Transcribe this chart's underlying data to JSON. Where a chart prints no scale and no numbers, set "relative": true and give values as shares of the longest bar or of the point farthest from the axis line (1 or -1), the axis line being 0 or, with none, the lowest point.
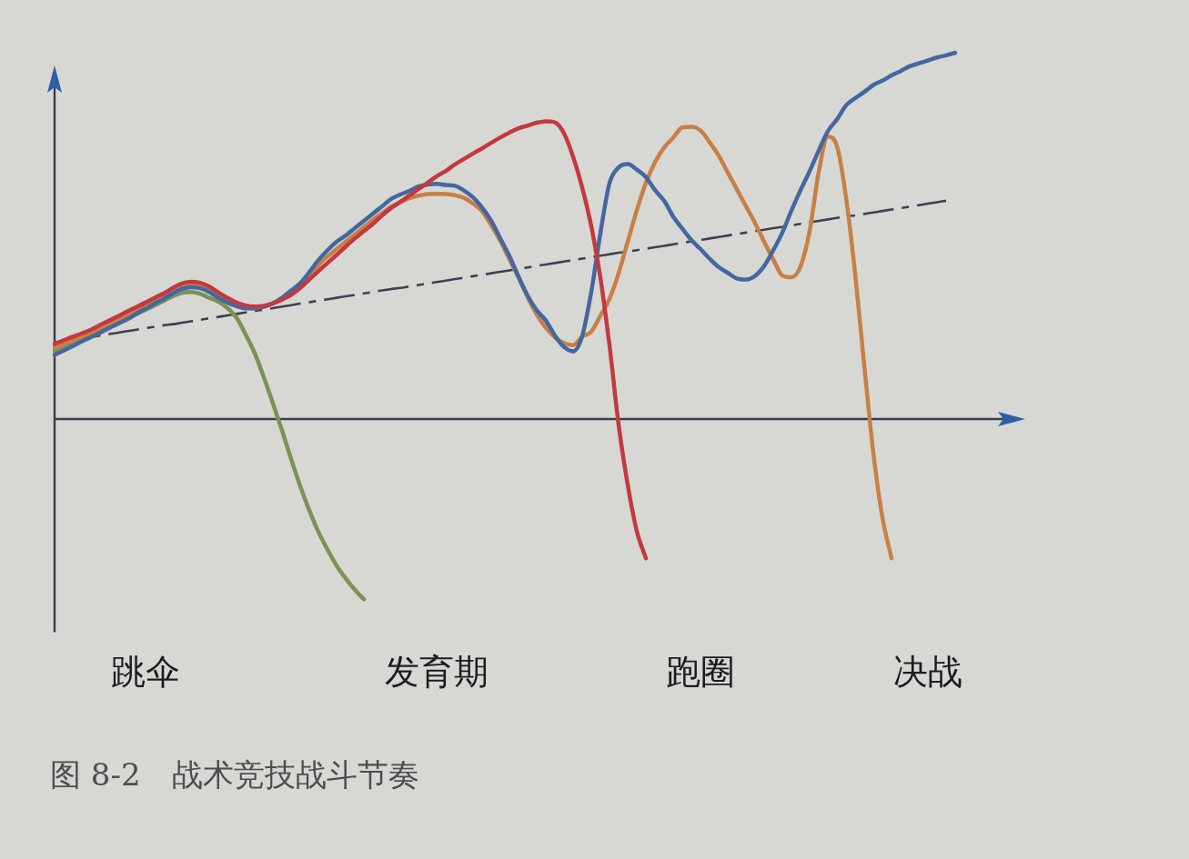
{
  "chart_data": {
    "type": "line",
    "relative": true,
    "marker": "none",
    "categories": [
      null,
      null,
      null,
      null,
      null,
      null,
      null,
      null,
      null,
      null,
      "跳伞",
      null,
      null,
      null,
      null,
      null,
      null,
      null,
      null,
      null,
      null,
      null,
      null,
      null,
      null,
      null,
      null,
      null,
      null,
      null,
      null,
      null,
      null,
      null,
      null,
      null,
      null,
      null,
      null,
      null,
      null,
      null,
      "发育期",
      null,
      null,
      null,
      null,
      null,
      null,
      null,
      null,
      null,
      null,
      null,
      null,
      null,
      null,
      null,
      null,
      null,
      null,
      null,
      null,
      null,
      null,
      null,
      null,
      null,
      null,
      null,
      null,
      "跑圈",
      null,
      null,
      null,
      null,
      null,
      null,
      null,
      null,
      null,
      null,
      null,
      null,
      null,
      null,
      null,
      null,
      null,
      null,
      null,
      null,
      null,
      null,
      null,
      null,
      "决战",
      null,
      null,
      null,
      null,
      null,
      null,
      null,
      null
    ],
    "series": [
      {
        "color": "#c3393f",
        "values": [
          0.205,
          0.215,
          0.225,
          0.234,
          0.244,
          0.257,
          0.269,
          0.281,
          0.294,
          0.306,
          0.318,
          0.331,
          0.343,
          0.358,
          0.37,
          0.375,
          0.372,
          0.362,
          0.346,
          0.331,
          0.318,
          0.31,
          0.307,
          0.309,
          0.316,
          0.326,
          0.339,
          0.358,
          0.381,
          0.404,
          0.426,
          0.448,
          0.471,
          0.493,
          0.513,
          0.533,
          0.556,
          0.576,
          0.593,
          0.61,
          0.628,
          0.645,
          0.663,
          0.677,
          0.695,
          0.71,
          0.725,
          0.739,
          0.754,
          0.769,
          0.782,
          0.794,
          0.801,
          0.809,
          0.813,
          0.81,
          0.78,
          0.716,
          0.632,
          0.526,
          0.386,
          0.201,
          -0.015,
          -0.179,
          -0.306,
          -0.38,
          null,
          null,
          null,
          null,
          null,
          null,
          null,
          null,
          null,
          null,
          null,
          null,
          null,
          null,
          null,
          null,
          null,
          null,
          null,
          null,
          null,
          null,
          null,
          null,
          null,
          null,
          null,
          null,
          null,
          null,
          null,
          null,
          null,
          null,
          null,
          null,
          null,
          null,
          null
        ]
      },
      {
        "color": "#44679f",
        "values": [
          0.175,
          0.187,
          0.199,
          0.212,
          0.224,
          0.236,
          0.249,
          0.261,
          0.273,
          0.288,
          0.301,
          0.315,
          0.328,
          0.343,
          0.355,
          0.36,
          0.357,
          0.347,
          0.331,
          0.318,
          0.308,
          0.302,
          0.302,
          0.307,
          0.316,
          0.331,
          0.351,
          0.371,
          0.401,
          0.434,
          0.461,
          0.484,
          0.501,
          0.521,
          0.541,
          0.561,
          0.581,
          0.601,
          0.613,
          0.623,
          0.635,
          0.64,
          0.642,
          0.639,
          0.637,
          0.624,
          0.605,
          0.577,
          0.541,
          0.493,
          0.445,
          0.389,
          0.337,
          0.297,
          0.269,
          0.228,
          0.197,
          0.185,
          0.227,
          0.348,
          0.508,
          0.644,
          0.687,
          0.696,
          0.681,
          0.661,
          0.625,
          0.596,
          0.553,
          0.52,
          0.489,
          0.464,
          0.438,
          0.415,
          0.399,
          0.384,
          0.381,
          0.391,
          0.418,
          0.461,
          0.509,
          0.569,
          0.625,
          0.677,
          0.733,
          0.786,
          0.818,
          0.856,
          0.876,
          0.893,
          0.912,
          0.924,
          0.938,
          0.95,
          0.963,
          0.971,
          0.979,
          0.987,
          0.993,
          1.0,
          null,
          null,
          null,
          null,
          null
        ]
      },
      {
        "color": "#c87f45",
        "values": [
          0.195,
          0.205,
          0.215,
          0.224,
          0.234,
          0.247,
          0.259,
          0.271,
          0.284,
          0.296,
          0.308,
          0.321,
          0.333,
          0.348,
          0.36,
          0.365,
          0.362,
          0.352,
          0.336,
          0.323,
          0.31,
          0.305,
          0.302,
          0.307,
          0.316,
          0.329,
          0.346,
          0.366,
          0.394,
          0.421,
          0.444,
          0.464,
          0.484,
          0.504,
          0.524,
          0.544,
          0.562,
          0.58,
          0.592,
          0.603,
          0.61,
          0.614,
          0.615,
          0.614,
          0.611,
          0.604,
          0.588,
          0.567,
          0.529,
          0.486,
          0.436,
          0.386,
          0.333,
          0.285,
          0.249,
          0.223,
          0.208,
          0.202,
          0.225,
          0.239,
          0.282,
          0.328,
          0.398,
          0.484,
          0.57,
          0.645,
          0.701,
          0.741,
          0.768,
          0.796,
          0.798,
          0.788,
          0.756,
          0.719,
          0.673,
          0.627,
          0.581,
          0.535,
          0.484,
          0.436,
          0.392,
          0.387,
          0.417,
          0.513,
          0.675,
          0.771,
          0.745,
          0.605,
          0.397,
          0.147,
          -0.092,
          -0.269,
          -0.38,
          null,
          null,
          null,
          null,
          null,
          null,
          null,
          null,
          null,
          null,
          null,
          null
        ]
      },
      {
        "color": "#7c9254",
        "values": [
          0.185,
          0.195,
          0.204,
          0.214,
          0.224,
          0.236,
          0.249,
          0.261,
          0.273,
          0.286,
          0.298,
          0.31,
          0.323,
          0.335,
          0.345,
          0.347,
          0.342,
          0.331,
          0.321,
          0.303,
          0.277,
          0.231,
          0.18,
          0.114,
          0.043,
          -0.031,
          -0.109,
          -0.183,
          -0.249,
          -0.308,
          -0.356,
          -0.4,
          -0.435,
          -0.466,
          -0.492,
          null,
          null,
          null,
          null,
          null,
          null,
          null,
          null,
          null,
          null,
          null,
          null,
          null,
          null,
          null,
          null,
          null,
          null,
          null,
          null,
          null,
          null,
          null,
          null,
          null,
          null,
          null,
          null,
          null,
          null,
          null,
          null,
          null,
          null,
          null,
          null,
          null,
          null,
          null,
          null,
          null,
          null,
          null,
          null,
          null,
          null,
          null,
          null,
          null,
          null,
          null,
          null,
          null,
          null,
          null,
          null,
          null,
          null,
          null,
          null,
          null,
          null,
          null,
          null,
          null,
          null,
          null,
          null,
          null,
          null
        ]
      },
      {
        "color": "#3d4150",
        "line_style": "dashed",
        "values": [
          0.208,
          0.212,
          0.216,
          0.22,
          0.224,
          0.228,
          0.232,
          0.236,
          0.24,
          0.244,
          0.248,
          0.252,
          0.256,
          0.259,
          0.263,
          0.267,
          0.271,
          0.275,
          0.279,
          0.283,
          0.287,
          0.291,
          0.295,
          0.299,
          0.303,
          0.307,
          0.311,
          0.315,
          0.319,
          0.323,
          0.327,
          0.331,
          0.335,
          0.339,
          0.343,
          0.347,
          0.351,
          0.355,
          0.358,
          0.362,
          0.366,
          0.37,
          0.374,
          0.378,
          0.382,
          0.386,
          0.39,
          0.394,
          0.398,
          0.402,
          0.406,
          0.41,
          0.414,
          0.418,
          0.422,
          0.426,
          0.43,
          0.434,
          0.438,
          0.442,
          0.446,
          0.45,
          0.454,
          0.457,
          0.461,
          0.465,
          0.469,
          0.473,
          0.477,
          0.481,
          0.485,
          0.489,
          0.493,
          0.497,
          0.501,
          0.505,
          0.509,
          0.513,
          0.517,
          0.521,
          0.525,
          0.529,
          0.533,
          0.537,
          0.541,
          0.545,
          0.549,
          0.553,
          0.556,
          0.56,
          0.564,
          0.568,
          0.572,
          0.576,
          0.58,
          0.584,
          0.588,
          0.592,
          0.596,
          null,
          null,
          null,
          null,
          null,
          null
        ]
      }
    ],
    "annotations": [
      "图 8-2　战术竞技战斗节奏"
    ]
  }
}
